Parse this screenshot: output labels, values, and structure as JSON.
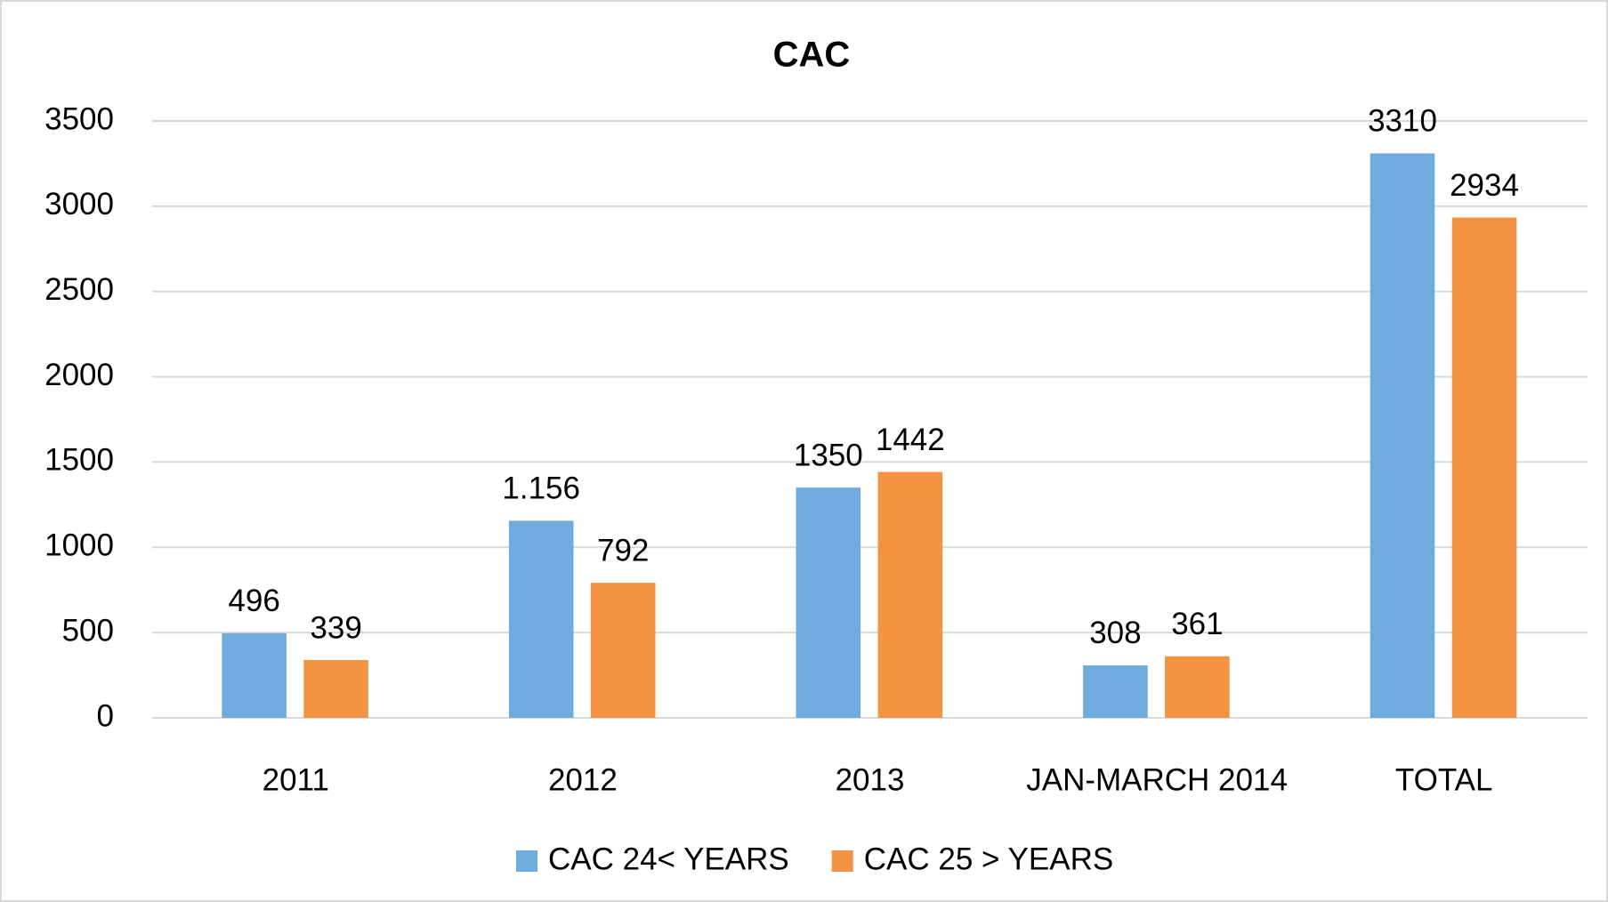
{
  "chart_data": {
    "type": "bar",
    "title": "CAC",
    "categories": [
      "2011",
      "2012",
      "2013",
      "JAN-MARCH 2014",
      "TOTAL"
    ],
    "series": [
      {
        "name": "CAC 24< YEARS",
        "color": "#6FACDD",
        "values": [
          496,
          1156,
          1350,
          308,
          3310
        ],
        "value_labels": [
          "496",
          "1.156",
          "1350",
          "308",
          "3310"
        ]
      },
      {
        "name": "CAC 25 > YEARS",
        "color": "#F29441",
        "values": [
          339,
          792,
          1442,
          361,
          2934
        ],
        "value_labels": [
          "339",
          "792",
          "1442",
          "361",
          "2934"
        ]
      }
    ],
    "ylim": [
      0,
      3500
    ],
    "yticks": [
      0,
      500,
      1000,
      1500,
      2000,
      2500,
      3000,
      3500
    ],
    "grid": true,
    "legend": "bottom"
  }
}
